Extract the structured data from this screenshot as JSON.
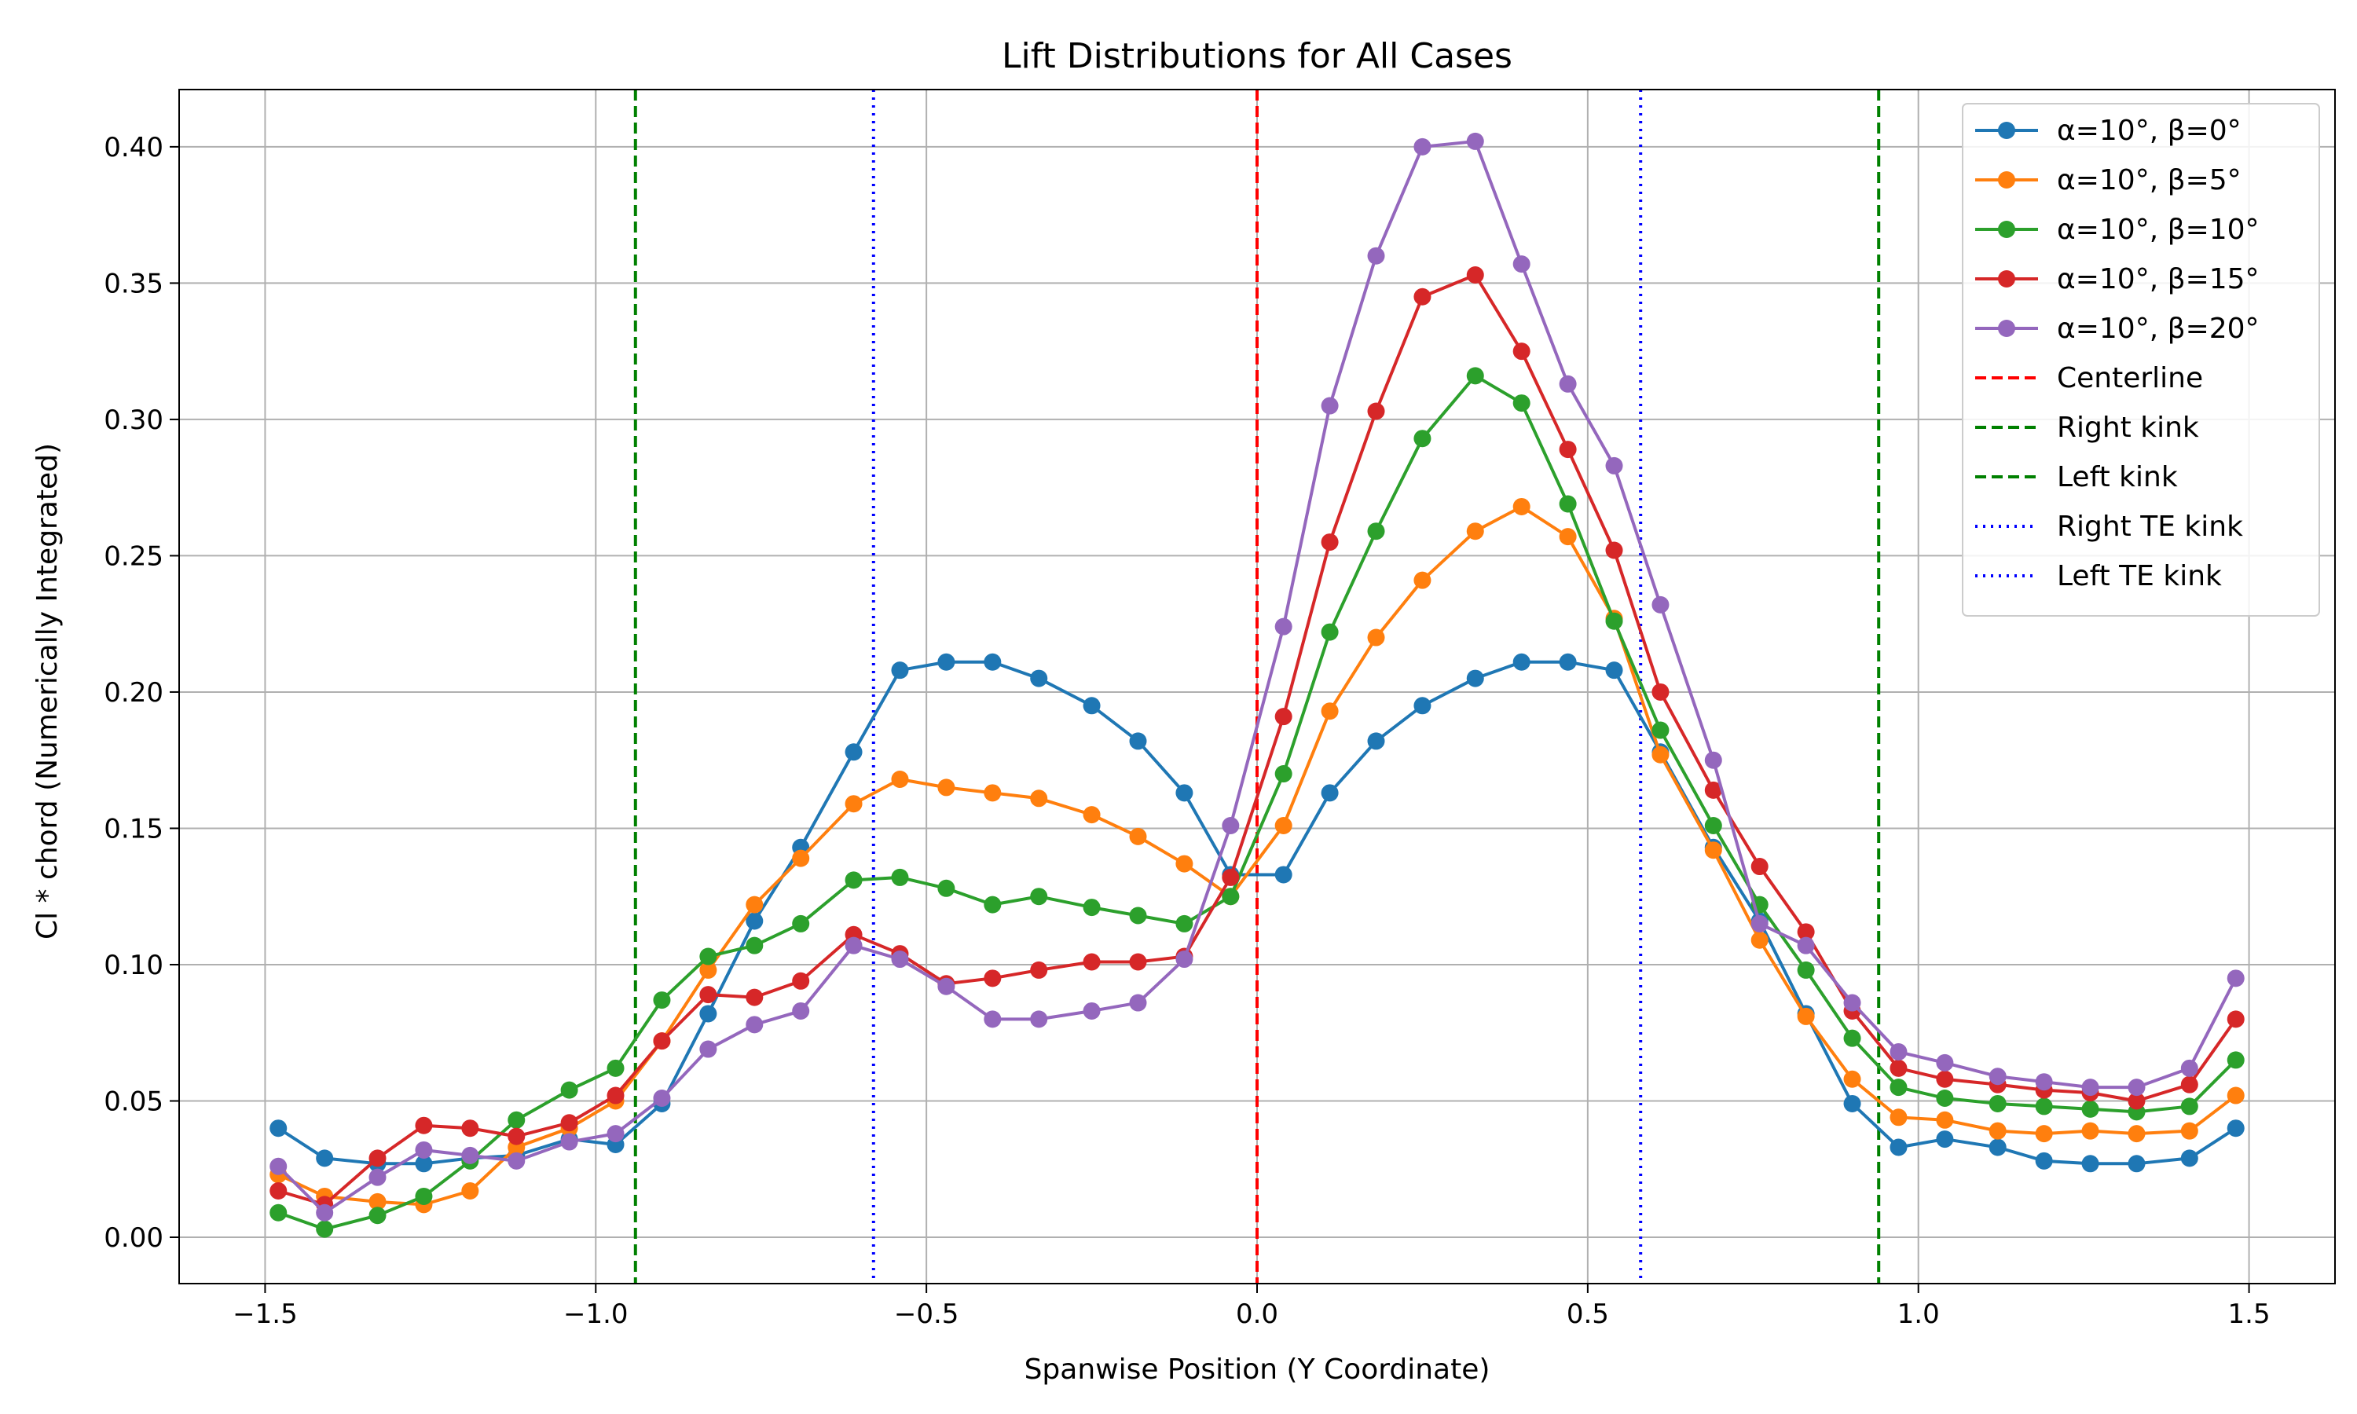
{
  "chart_data": {
    "type": "line",
    "title": "Lift Distributions for All Cases",
    "xlabel": "Spanwise Position (Y Coordinate)",
    "ylabel": "Cl * chord (Numerically Integrated)",
    "xlim": [
      -1.63,
      1.63
    ],
    "ylim": [
      -0.017,
      0.421
    ],
    "grid": true,
    "legend_position": "top-right",
    "x_ticks": [
      -1.5,
      -1.0,
      -0.5,
      0.0,
      0.5,
      1.0,
      1.5
    ],
    "x_tick_labels": [
      "−1.5",
      "−1.0",
      "−0.5",
      "0.0",
      "0.5",
      "1.0",
      "1.5"
    ],
    "y_ticks": [
      0.0,
      0.05,
      0.1,
      0.15,
      0.2,
      0.25,
      0.3,
      0.35,
      0.4
    ],
    "y_tick_labels": [
      "0.00",
      "0.05",
      "0.10",
      "0.15",
      "0.20",
      "0.25",
      "0.30",
      "0.35",
      "0.40"
    ],
    "x": [
      -1.48,
      -1.41,
      -1.33,
      -1.26,
      -1.19,
      -1.12,
      -1.04,
      -0.97,
      -0.9,
      -0.83,
      -0.76,
      -0.69,
      -0.61,
      -0.54,
      -0.47,
      -0.4,
      -0.33,
      -0.25,
      -0.18,
      -0.11,
      -0.04,
      0.04,
      0.11,
      0.18,
      0.25,
      0.33,
      0.4,
      0.47,
      0.54,
      0.61,
      0.69,
      0.76,
      0.83,
      0.9,
      0.97,
      1.04,
      1.12,
      1.19,
      1.26,
      1.33,
      1.41,
      1.48
    ],
    "series": [
      {
        "name": "α=10°, β=0°",
        "color": "#1f77b4",
        "values": [
          0.04,
          0.029,
          0.027,
          0.027,
          0.029,
          0.03,
          0.036,
          0.034,
          0.049,
          0.082,
          0.116,
          0.143,
          0.178,
          0.208,
          0.211,
          0.211,
          0.205,
          0.195,
          0.182,
          0.163,
          0.133,
          0.133,
          0.163,
          0.182,
          0.195,
          0.205,
          0.211,
          0.211,
          0.208,
          0.178,
          0.143,
          0.116,
          0.082,
          0.049,
          0.033,
          0.036,
          0.033,
          0.028,
          0.027,
          0.027,
          0.029,
          0.04
        ]
      },
      {
        "name": "α=10°, β=5°",
        "color": "#ff7f0e",
        "values": [
          0.023,
          0.015,
          0.013,
          0.012,
          0.017,
          0.033,
          0.04,
          0.05,
          0.072,
          0.098,
          0.122,
          0.139,
          0.159,
          0.168,
          0.165,
          0.163,
          0.161,
          0.155,
          0.147,
          0.137,
          0.125,
          0.151,
          0.193,
          0.22,
          0.241,
          0.259,
          0.268,
          0.257,
          0.227,
          0.177,
          0.142,
          0.109,
          0.081,
          0.058,
          0.044,
          0.043,
          0.039,
          0.038,
          0.039,
          0.038,
          0.039,
          0.052
        ]
      },
      {
        "name": "α=10°, β=10°",
        "color": "#2ca02c",
        "values": [
          0.009,
          0.003,
          0.008,
          0.015,
          0.028,
          0.043,
          0.054,
          0.062,
          0.087,
          0.103,
          0.107,
          0.115,
          0.131,
          0.132,
          0.128,
          0.122,
          0.125,
          0.121,
          0.118,
          0.115,
          0.125,
          0.17,
          0.222,
          0.259,
          0.293,
          0.316,
          0.306,
          0.269,
          0.226,
          0.186,
          0.151,
          0.122,
          0.098,
          0.073,
          0.055,
          0.051,
          0.049,
          0.048,
          0.047,
          0.046,
          0.048,
          0.065
        ]
      },
      {
        "name": "α=10°, β=15°",
        "color": "#d62728",
        "values": [
          0.017,
          0.012,
          0.029,
          0.041,
          0.04,
          0.037,
          0.042,
          0.052,
          0.072,
          0.089,
          0.088,
          0.094,
          0.111,
          0.104,
          0.093,
          0.095,
          0.098,
          0.101,
          0.101,
          0.103,
          0.132,
          0.191,
          0.255,
          0.303,
          0.345,
          0.353,
          0.325,
          0.289,
          0.252,
          0.2,
          0.164,
          0.136,
          0.112,
          0.083,
          0.062,
          0.058,
          0.056,
          0.054,
          0.053,
          0.05,
          0.056,
          0.08
        ]
      },
      {
        "name": "α=10°, β=20°",
        "color": "#9467bd",
        "values": [
          0.026,
          0.009,
          0.022,
          0.032,
          0.03,
          0.028,
          0.035,
          0.038,
          0.051,
          0.069,
          0.078,
          0.083,
          0.107,
          0.102,
          0.092,
          0.08,
          0.08,
          0.083,
          0.086,
          0.102,
          0.151,
          0.224,
          0.305,
          0.36,
          0.4,
          0.402,
          0.357,
          0.313,
          0.283,
          0.232,
          0.175,
          0.115,
          0.107,
          0.086,
          0.068,
          0.064,
          0.059,
          0.057,
          0.055,
          0.055,
          0.062,
          0.095
        ]
      }
    ],
    "reference_lines": [
      {
        "name": "Centerline",
        "x": 0.0,
        "color": "#ff0000",
        "style": "dashed"
      },
      {
        "name": "Right kink",
        "x": 0.94,
        "color": "#008000",
        "style": "dashed"
      },
      {
        "name": "Left kink",
        "x": -0.94,
        "color": "#008000",
        "style": "dashed"
      },
      {
        "name": "Right TE kink",
        "x": 0.58,
        "color": "#0000ff",
        "style": "dotted"
      },
      {
        "name": "Left TE kink",
        "x": -0.58,
        "color": "#0000ff",
        "style": "dotted"
      }
    ]
  }
}
